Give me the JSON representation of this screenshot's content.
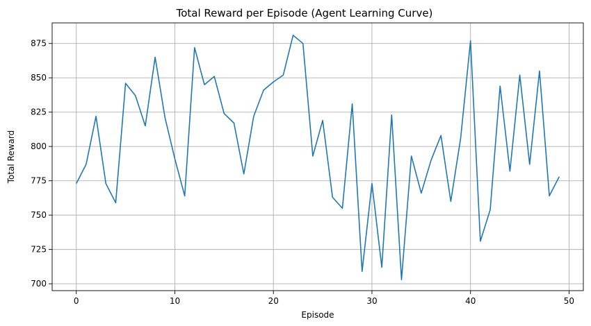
{
  "chart_data": {
    "type": "line",
    "title": "Total Reward per Episode (Agent Learning Curve)",
    "xlabel": "Episode",
    "ylabel": "Total Reward",
    "xlim": [
      -2.45,
      51.45
    ],
    "ylim": [
      695,
      890
    ],
    "xticks": [
      0,
      10,
      20,
      30,
      40,
      50
    ],
    "yticks": [
      700,
      725,
      750,
      775,
      800,
      825,
      850,
      875
    ],
    "grid": true,
    "line_color": "#1f77b4",
    "x": [
      0,
      1,
      2,
      3,
      4,
      5,
      6,
      7,
      8,
      9,
      10,
      11,
      12,
      13,
      14,
      15,
      16,
      17,
      18,
      19,
      20,
      21,
      22,
      23,
      24,
      25,
      26,
      27,
      28,
      29,
      30,
      31,
      32,
      33,
      34,
      35,
      36,
      37,
      38,
      39,
      40,
      41,
      42,
      43,
      44,
      45,
      46,
      47,
      48,
      49
    ],
    "y": [
      773,
      787,
      822,
      773,
      759,
      846,
      837,
      815,
      865,
      821,
      791,
      764,
      872,
      845,
      851,
      824,
      817,
      780,
      822,
      841,
      847,
      852,
      881,
      875,
      793,
      819,
      763,
      755,
      831,
      709,
      773,
      712,
      823,
      703,
      793,
      766,
      790,
      808,
      760,
      806,
      877,
      731,
      754,
      844,
      782,
      852,
      787,
      855,
      764,
      778
    ]
  }
}
